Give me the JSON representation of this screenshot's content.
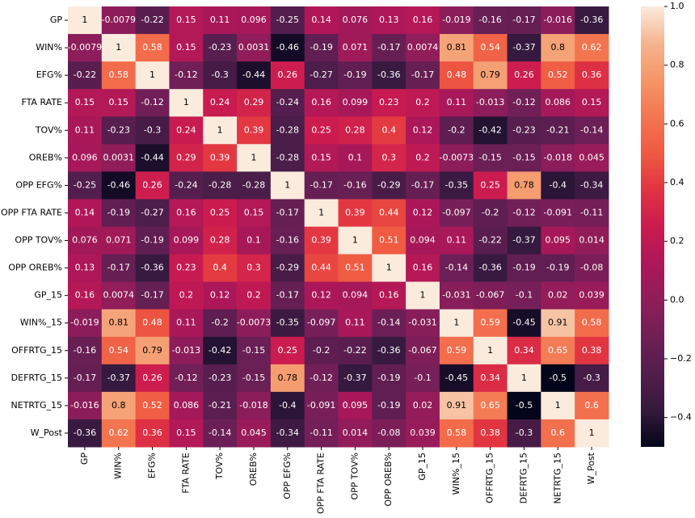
{
  "chart_data": {
    "type": "heatmap",
    "x": [
      "GP",
      "WIN%",
      "EFG%",
      "FTA RATE",
      "TOV%",
      "OREB%",
      "OPP EFG%",
      "OPP FTA RATE",
      "OPP TOV%",
      "OPP OREB%",
      "GP_15",
      "WIN%_15",
      "OFFRTG_15",
      "DEFRTG_15",
      "NETRTG_15",
      "W_Post"
    ],
    "y": [
      "GP",
      "WIN%",
      "EFG%",
      "FTA RATE",
      "TOV%",
      "OREB%",
      "OPP EFG%",
      "OPP FTA RATE",
      "OPP TOV%",
      "OPP OREB%",
      "GP_15",
      "WIN%_15",
      "OFFRTG_15",
      "DEFRTG_15",
      "NETRTG_15",
      "W_Post"
    ],
    "values": [
      [
        1,
        -0.0079,
        -0.22,
        0.15,
        0.11,
        0.096,
        -0.25,
        0.14,
        0.076,
        0.13,
        0.16,
        -0.019,
        -0.16,
        -0.17,
        -0.016,
        -0.36
      ],
      [
        -0.0079,
        1,
        0.58,
        0.15,
        -0.23,
        0.0031,
        -0.46,
        -0.19,
        0.071,
        -0.17,
        0.0074,
        0.81,
        0.54,
        -0.37,
        0.8,
        0.62
      ],
      [
        -0.22,
        0.58,
        1,
        -0.12,
        -0.3,
        -0.44,
        0.26,
        -0.27,
        -0.19,
        -0.36,
        -0.17,
        0.48,
        0.79,
        0.26,
        0.52,
        0.36
      ],
      [
        0.15,
        0.15,
        -0.12,
        1,
        0.24,
        0.29,
        -0.24,
        0.16,
        0.099,
        0.23,
        0.2,
        0.11,
        -0.013,
        -0.12,
        0.086,
        0.15
      ],
      [
        0.11,
        -0.23,
        -0.3,
        0.24,
        1,
        0.39,
        -0.28,
        0.25,
        0.28,
        0.4,
        0.12,
        -0.2,
        -0.42,
        -0.23,
        -0.21,
        -0.14
      ],
      [
        0.096,
        0.0031,
        -0.44,
        0.29,
        0.39,
        1,
        -0.28,
        0.15,
        0.1,
        0.3,
        0.2,
        -0.0073,
        -0.15,
        -0.15,
        -0.018,
        0.045
      ],
      [
        -0.25,
        -0.46,
        0.26,
        -0.24,
        -0.28,
        -0.28,
        1,
        -0.17,
        -0.16,
        -0.29,
        -0.17,
        -0.35,
        0.25,
        0.78,
        -0.4,
        -0.34
      ],
      [
        0.14,
        -0.19,
        -0.27,
        0.16,
        0.25,
        0.15,
        -0.17,
        1,
        0.39,
        0.44,
        0.12,
        -0.097,
        -0.2,
        -0.12,
        -0.091,
        -0.11
      ],
      [
        0.076,
        0.071,
        -0.19,
        0.099,
        0.28,
        0.1,
        -0.16,
        0.39,
        1,
        0.51,
        0.094,
        0.11,
        -0.22,
        -0.37,
        0.095,
        0.014
      ],
      [
        0.13,
        -0.17,
        -0.36,
        0.23,
        0.4,
        0.3,
        -0.29,
        0.44,
        0.51,
        1,
        0.16,
        -0.14,
        -0.36,
        -0.19,
        -0.19,
        -0.08
      ],
      [
        0.16,
        0.0074,
        -0.17,
        0.2,
        0.12,
        0.2,
        -0.17,
        0.12,
        0.094,
        0.16,
        1,
        -0.031,
        -0.067,
        -0.1,
        0.02,
        0.039
      ],
      [
        -0.019,
        0.81,
        0.48,
        0.11,
        -0.2,
        -0.0073,
        -0.35,
        -0.097,
        0.11,
        -0.14,
        -0.031,
        1,
        0.59,
        -0.45,
        0.91,
        0.58
      ],
      [
        -0.16,
        0.54,
        0.79,
        -0.013,
        -0.42,
        -0.15,
        0.25,
        -0.2,
        -0.22,
        -0.36,
        -0.067,
        0.59,
        1,
        0.34,
        0.65,
        0.38
      ],
      [
        -0.17,
        -0.37,
        0.26,
        -0.12,
        -0.23,
        -0.15,
        0.78,
        -0.12,
        -0.37,
        -0.19,
        -0.1,
        -0.45,
        0.34,
        1,
        -0.5,
        -0.3
      ],
      [
        -0.016,
        0.8,
        0.52,
        0.086,
        -0.21,
        -0.018,
        -0.4,
        -0.091,
        0.095,
        -0.19,
        0.02,
        0.91,
        0.65,
        -0.5,
        1,
        0.6
      ],
      [
        -0.36,
        0.62,
        0.36,
        0.15,
        -0.14,
        0.045,
        -0.34,
        -0.11,
        0.014,
        -0.08,
        0.039,
        0.58,
        0.38,
        -0.3,
        0.6,
        1
      ]
    ],
    "clim": [
      -0.5,
      1
    ],
    "cticks": [
      {
        "value": -0.4,
        "label": "−0.4"
      },
      {
        "value": -0.2,
        "label": "−0.2"
      },
      {
        "value": 0,
        "label": "0.0"
      },
      0.2,
      0.4,
      0.6,
      0.8,
      {
        "value": 1,
        "label": "1.0"
      }
    ],
    "colormap": [
      "#03051a",
      "#35193e",
      "#521e4d",
      "#701f57",
      "#8f1d5a",
      "#ad1759",
      "#cb1b4f",
      "#e13342",
      "#ef5a41",
      "#f37651",
      "#f59667",
      "#f6b48f",
      "#faebdd"
    ]
  }
}
